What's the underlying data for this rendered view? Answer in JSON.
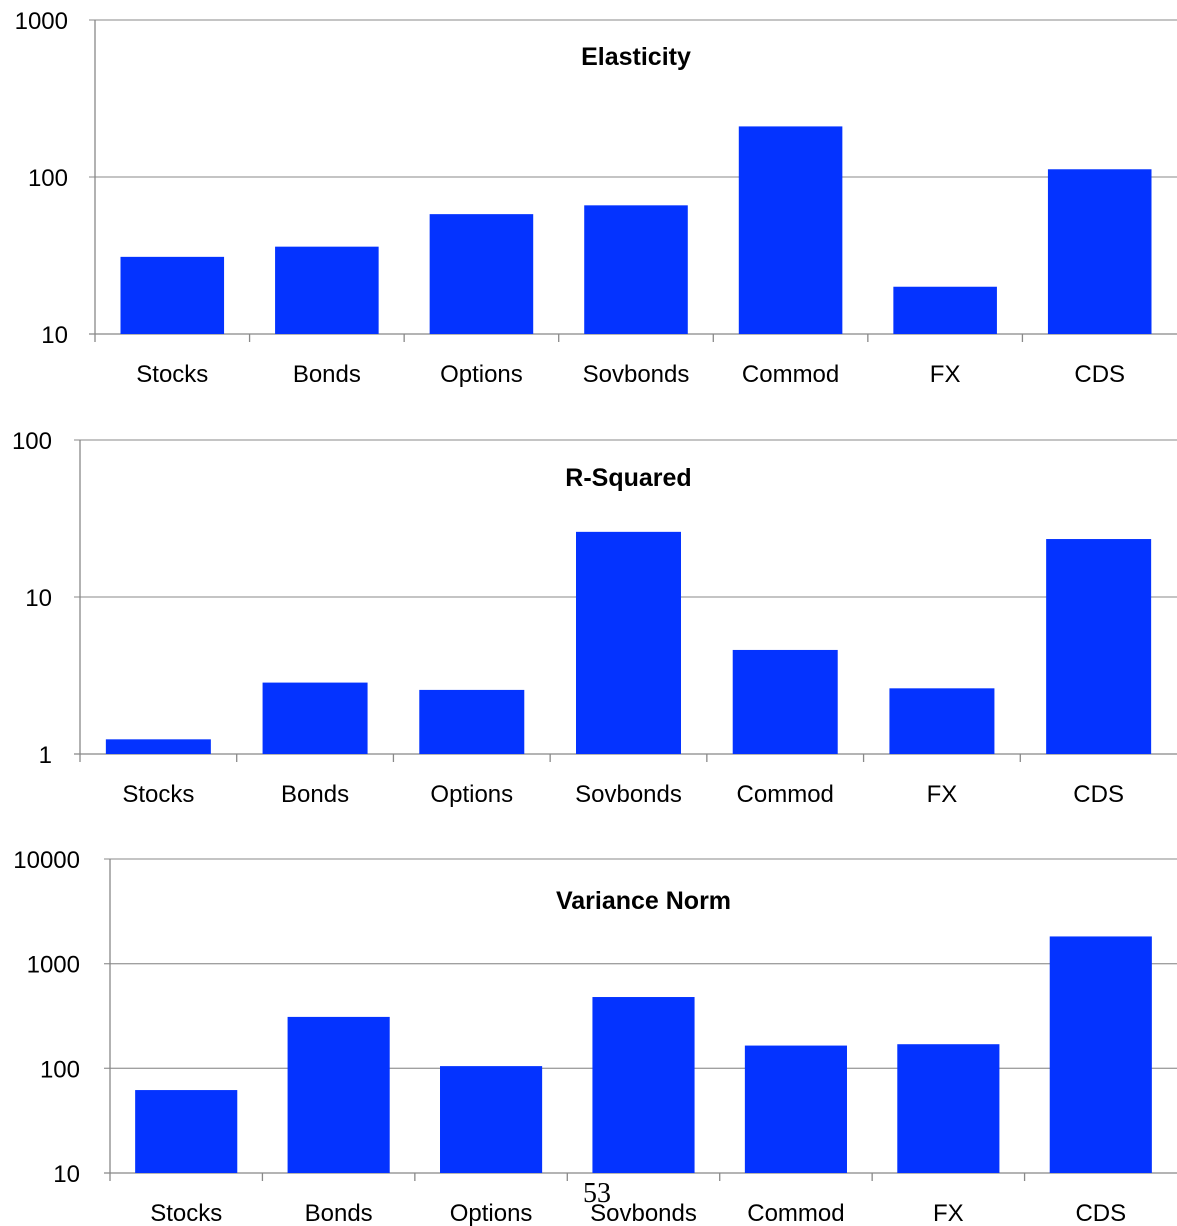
{
  "colors": {
    "bar": "#0433ff",
    "grid": "#a0a0a0",
    "axis": "#888888"
  },
  "page_number": "53",
  "chart_data": [
    {
      "type": "bar",
      "title": "Elasticity",
      "scale": "log",
      "categories": [
        "Stocks",
        "Bonds",
        "Options",
        "Sovbonds",
        "Commod",
        "FX",
        "CDS"
      ],
      "values": [
        31,
        36,
        58,
        66,
        210,
        20,
        112
      ],
      "ylim": [
        10,
        1000
      ],
      "yticks": [
        "10",
        "100",
        "1000"
      ],
      "grid": true,
      "legend": "none"
    },
    {
      "type": "bar",
      "title": "R-Squared",
      "scale": "log",
      "categories": [
        "Stocks",
        "Bonds",
        "Options",
        "Sovbonds",
        "Commod",
        "FX",
        "CDS"
      ],
      "values": [
        1.24,
        2.85,
        2.56,
        26,
        4.6,
        2.62,
        23.4
      ],
      "ylim": [
        1,
        100
      ],
      "yticks": [
        "1",
        "10",
        "100"
      ],
      "grid": true,
      "legend": "none"
    },
    {
      "type": "bar",
      "title": "Variance Norm",
      "scale": "log",
      "categories": [
        "Stocks",
        "Bonds",
        "Options",
        "Sovbonds",
        "Commod",
        "FX",
        "CDS"
      ],
      "values": [
        62,
        310,
        105,
        480,
        165,
        170,
        1820
      ],
      "ylim": [
        10,
        10000
      ],
      "yticks": [
        "10",
        "100",
        "1000",
        "10000"
      ],
      "grid": true,
      "legend": "none"
    }
  ]
}
